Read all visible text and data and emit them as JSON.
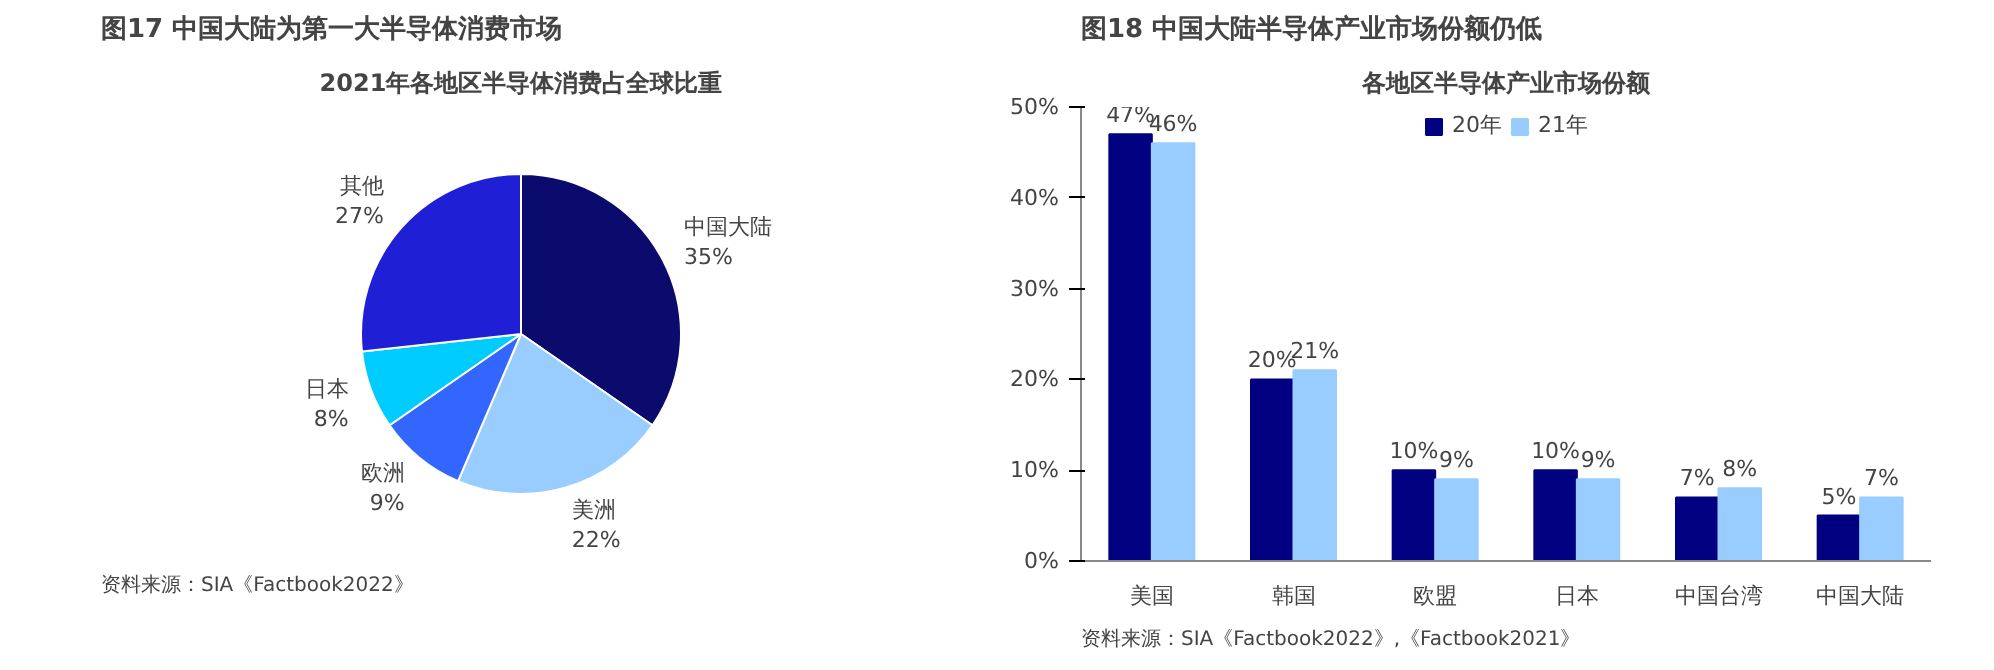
{
  "chart_data": [
    {
      "type": "pie",
      "title": "图17 中国大陆为第一大半导体消费市场",
      "subtitle": "2021年各地区半导体消费占全球比重",
      "categories": [
        "中国大陆",
        "美洲",
        "欧洲",
        "日本",
        "其他"
      ],
      "values": [
        35,
        22,
        9,
        8,
        27
      ],
      "value_labels": [
        "35%",
        "22%",
        "9%",
        "8%",
        "27%"
      ],
      "colors": [
        "#0b0b6e",
        "#99ccff",
        "#3366ff",
        "#00ccff",
        "#1f1fd6"
      ],
      "annotations": [
        "资料来源：SIA《Factbook2022》"
      ]
    },
    {
      "type": "bar",
      "title": "图18 中国大陆半导体产业市场份额仍低",
      "subtitle": "各地区半导体产业市场份额",
      "categories": [
        "美国",
        "韩国",
        "欧盟",
        "日本",
        "中国台湾",
        "中国大陆"
      ],
      "series": [
        {
          "name": "20年",
          "color": "#000080",
          "values": [
            47,
            20,
            10,
            10,
            7,
            5
          ],
          "value_labels": [
            "47%",
            "20%",
            "10%",
            "10%",
            "7%",
            "5%"
          ]
        },
        {
          "name": "21年",
          "color": "#99ccff",
          "values": [
            46,
            21,
            9,
            9,
            8,
            7
          ],
          "value_labels": [
            "46%",
            "21%",
            "9%",
            "9%",
            "8%",
            "7%"
          ]
        }
      ],
      "ylim": [
        0,
        50
      ],
      "yticks": [
        {
          "value": 0,
          "label": "0%"
        },
        {
          "value": 10,
          "label": "10%"
        },
        {
          "value": 20,
          "label": "20%"
        },
        {
          "value": 30,
          "label": "30%"
        },
        {
          "value": 40,
          "label": "40%"
        },
        {
          "value": 50,
          "label": "50%"
        }
      ],
      "legend": "top",
      "grid": false,
      "annotations": [
        "资料来源：SIA《Factbook2022》,《Factbook2021》"
      ]
    }
  ]
}
